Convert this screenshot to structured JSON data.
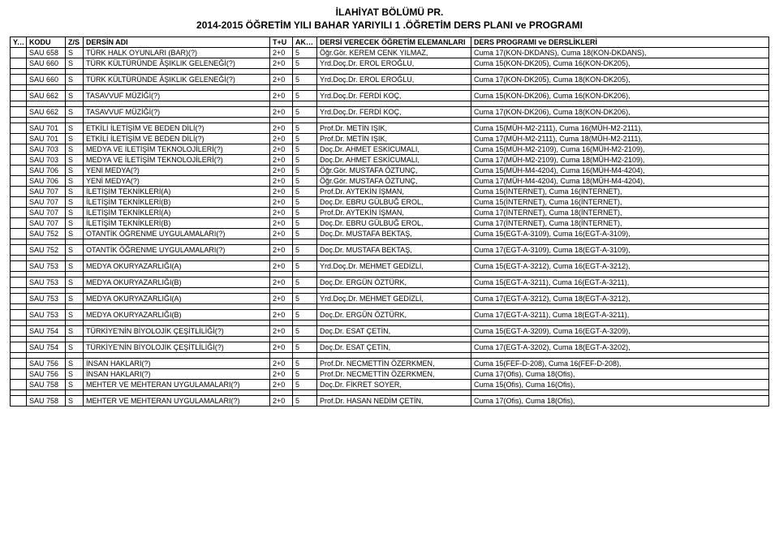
{
  "header": {
    "line1": "İLAHİYAT BÖLÜMÜ PR.",
    "line2": "2014-2015 ÖĞRETİM YILI BAHAR YARIYILI 1 .ÖĞRETİM DERS PLANI ve PROGRAMI"
  },
  "columns": {
    "yy": "Y.Y.",
    "kodu": "KODU",
    "zs": "Z/S",
    "ders": "DERSİN ADI",
    "tu": "T+U",
    "akts": "AKTS",
    "elem": "DERSİ VERECEK ÖĞRETİM ELEMANLARI",
    "prog": "DERS PROGRAMI ve DERSLİKLERİ"
  },
  "rows": [
    {
      "kodu": "SAU 658",
      "zs": "S",
      "ders": "TÜRK HALK OYUNLARI (BAR)(?)",
      "tu": "2+0",
      "akts": "5",
      "elem": "Öğr.Gör. KEREM CENK YILMAZ,",
      "prog": "Cuma 17(KON-DKDANS), Cuma 18(KON-DKDANS),"
    },
    {
      "kodu": "SAU 660",
      "zs": "S",
      "ders": "TÜRK KÜLTÜRÜNDE ÂŞIKLIK GELENEĞİ(?)",
      "tu": "2+0",
      "akts": "5",
      "elem": "Yrd.Doç.Dr. EROL EROĞLU,",
      "prog": "Cuma 15(KON-DK205), Cuma 16(KON-DK205),"
    },
    {
      "gap": true
    },
    {
      "kodu": "SAU 660",
      "zs": "S",
      "ders": "TÜRK KÜLTÜRÜNDE ÂŞIKLIK GELENEĞİ(?)",
      "tu": "2+0",
      "akts": "5",
      "elem": "Yrd.Doç.Dr. EROL EROĞLU,",
      "prog": "Cuma 17(KON-DK205), Cuma 18(KON-DK205),"
    },
    {
      "gap": true
    },
    {
      "kodu": "SAU 662",
      "zs": "S",
      "ders": "TASAVVUF MÜZİĞİ(?)",
      "tu": "2+0",
      "akts": "5",
      "elem": "Yrd.Doç.Dr. FERDİ KOÇ,",
      "prog": "Cuma 15(KON-DK206), Cuma 16(KON-DK206),"
    },
    {
      "gap": true
    },
    {
      "kodu": "SAU 662",
      "zs": "S",
      "ders": "TASAVVUF MÜZİĞİ(?)",
      "tu": "2+0",
      "akts": "5",
      "elem": "Yrd.Doç.Dr. FERDİ KOÇ,",
      "prog": "Cuma 17(KON-DK206), Cuma 18(KON-DK206),"
    },
    {
      "gap": true
    },
    {
      "kodu": "SAU 701",
      "zs": "S",
      "ders": "ETKİLİ İLETİŞİM VE BEDEN DİLİ(?)",
      "tu": "2+0",
      "akts": "5",
      "elem": "Prof.Dr. METİN IŞIK,",
      "prog": "Cuma 15(MÜH-M2-2111), Cuma 16(MÜH-M2-2111),"
    },
    {
      "kodu": "SAU 701",
      "zs": "S",
      "ders": "ETKİLİ İLETİŞİM VE BEDEN DİLİ(?)",
      "tu": "2+0",
      "akts": "5",
      "elem": "Prof.Dr. METİN IŞIK,",
      "prog": "Cuma 17(MÜH-M2-2111), Cuma 18(MÜH-M2-2111),"
    },
    {
      "kodu": "SAU 703",
      "zs": "S",
      "ders": "MEDYA VE İLETİŞİM TEKNOLOJİLERİ(?)",
      "tu": "2+0",
      "akts": "5",
      "elem": "Doç.Dr. AHMET ESKİCUMALI,",
      "prog": "Cuma 15(MÜH-M2-2109), Cuma 16(MÜH-M2-2109),"
    },
    {
      "kodu": "SAU 703",
      "zs": "S",
      "ders": "MEDYA VE İLETİŞİM TEKNOLOJİLERİ(?)",
      "tu": "2+0",
      "akts": "5",
      "elem": "Doç.Dr. AHMET ESKİCUMALI,",
      "prog": "Cuma 17(MÜH-M2-2109), Cuma 18(MÜH-M2-2109),"
    },
    {
      "kodu": "SAU 706",
      "zs": "S",
      "ders": "YENİ MEDYA(?)",
      "tu": "2+0",
      "akts": "5",
      "elem": "Öğr.Gör. MUSTAFA ÖZTUNÇ,",
      "prog": "Cuma 15(MÜH-M4-4204), Cuma 16(MÜH-M4-4204),"
    },
    {
      "kodu": "SAU 706",
      "zs": "S",
      "ders": "YENİ MEDYA(?)",
      "tu": "2+0",
      "akts": "5",
      "elem": "Öğr.Gör. MUSTAFA ÖZTUNÇ,",
      "prog": "Cuma 17(MÜH-M4-4204), Cuma 18(MÜH-M4-4204),"
    },
    {
      "kodu": "SAU 707",
      "zs": "S",
      "ders": "İLETİŞİM TEKNİKLERİ(A)",
      "tu": "2+0",
      "akts": "5",
      "elem": "Prof.Dr. AYTEKİN İŞMAN,",
      "prog": "Cuma 15(İNTERNET), Cuma 16(İNTERNET),"
    },
    {
      "kodu": "SAU 707",
      "zs": "S",
      "ders": "İLETİŞİM TEKNİKLERİ(B)",
      "tu": "2+0",
      "akts": "5",
      "elem": "Doç.Dr. EBRU GÜLBUĞ EROL,",
      "prog": "Cuma 15(İNTERNET), Cuma 16(İNTERNET),"
    },
    {
      "kodu": "SAU 707",
      "zs": "S",
      "ders": "İLETİŞİM TEKNİKLERİ(A)",
      "tu": "2+0",
      "akts": "5",
      "elem": "Prof.Dr. AYTEKİN İŞMAN,",
      "prog": "Cuma 17(İNTERNET), Cuma 18(İNTERNET),"
    },
    {
      "kodu": "SAU 707",
      "zs": "S",
      "ders": "İLETİŞİM TEKNİKLERİ(B)",
      "tu": "2+0",
      "akts": "5",
      "elem": "Doç.Dr. EBRU GÜLBUĞ EROL,",
      "prog": "Cuma 17(İNTERNET), Cuma 18(İNTERNET),"
    },
    {
      "kodu": "SAU 752",
      "zs": "S",
      "ders": "OTANTİK ÖĞRENME UYGULAMALARI(?)",
      "tu": "2+0",
      "akts": "5",
      "elem": "Doç.Dr. MUSTAFA BEKTAŞ,",
      "prog": "Cuma 15(EGT-A-3109), Cuma 16(EGT-A-3109),"
    },
    {
      "gap": true
    },
    {
      "kodu": "SAU 752",
      "zs": "S",
      "ders": "OTANTİK ÖĞRENME UYGULAMALARI(?)",
      "tu": "2+0",
      "akts": "5",
      "elem": "Doç.Dr. MUSTAFA BEKTAŞ,",
      "prog": "Cuma 17(EGT-A-3109), Cuma 18(EGT-A-3109),"
    },
    {
      "gap": true
    },
    {
      "kodu": "SAU 753",
      "zs": "S",
      "ders": "MEDYA OKURYAZARLIĞI(A)",
      "tu": "2+0",
      "akts": "5",
      "elem": "Yrd.Doç.Dr. MEHMET GEDİZLİ,",
      "prog": "Cuma 15(EGT-A-3212), Cuma 16(EGT-A-3212),"
    },
    {
      "gap": true
    },
    {
      "kodu": "SAU 753",
      "zs": "S",
      "ders": "MEDYA OKURYAZARLIĞI(B)",
      "tu": "2+0",
      "akts": "5",
      "elem": "Doç.Dr. ERGÜN ÖZTÜRK,",
      "prog": "Cuma 15(EGT-A-3211), Cuma 16(EGT-A-3211),"
    },
    {
      "gap": true
    },
    {
      "kodu": "SAU 753",
      "zs": "S",
      "ders": "MEDYA OKURYAZARLIĞI(A)",
      "tu": "2+0",
      "akts": "5",
      "elem": "Yrd.Doç.Dr. MEHMET GEDİZLİ,",
      "prog": "Cuma 17(EGT-A-3212), Cuma 18(EGT-A-3212),"
    },
    {
      "gap": true
    },
    {
      "kodu": "SAU 753",
      "zs": "S",
      "ders": "MEDYA OKURYAZARLIĞI(B)",
      "tu": "2+0",
      "akts": "5",
      "elem": "Doç.Dr. ERGÜN ÖZTÜRK,",
      "prog": "Cuma 17(EGT-A-3211), Cuma 18(EGT-A-3211),"
    },
    {
      "gap": true
    },
    {
      "kodu": "SAU 754",
      "zs": "S",
      "ders": "TÜRKİYE'NİN BİYOLOJİK ÇEŞİTLİLİĞİ(?)",
      "tu": "2+0",
      "akts": "5",
      "elem": "Doç.Dr. ESAT ÇETİN,",
      "prog": "Cuma 15(EGT-A-3209), Cuma 16(EGT-A-3209),"
    },
    {
      "gap": true
    },
    {
      "kodu": "SAU 754",
      "zs": "S",
      "ders": "TÜRKİYE'NİN BİYOLOJİK ÇEŞİTLİLİĞİ(?)",
      "tu": "2+0",
      "akts": "5",
      "elem": "Doç.Dr. ESAT ÇETİN,",
      "prog": "Cuma 17(EGT-A-3202), Cuma 18(EGT-A-3202),"
    },
    {
      "gap": true
    },
    {
      "kodu": "SAU 756",
      "zs": "S",
      "ders": "İNSAN HAKLARI(?)",
      "tu": "2+0",
      "akts": "5",
      "elem": "Prof.Dr. NECMETTİN ÖZERKMEN,",
      "prog": "Cuma 15(FEF-D-208), Cuma 16(FEF-D-208),"
    },
    {
      "kodu": "SAU 756",
      "zs": "S",
      "ders": "İNSAN HAKLARI(?)",
      "tu": "2+0",
      "akts": "5",
      "elem": "Prof.Dr. NECMETTİN ÖZERKMEN,",
      "prog": "Cuma 17(Ofis), Cuma 18(Ofis),"
    },
    {
      "kodu": "SAU 758",
      "zs": "S",
      "ders": "MEHTER VE MEHTERAN UYGULAMALARI(?)",
      "tu": "2+0",
      "akts": "5",
      "elem": "Doç.Dr. FİKRET SOYER,",
      "prog": "Cuma 15(Ofis), Cuma 16(Ofis),"
    },
    {
      "gap": true
    },
    {
      "kodu": "SAU 758",
      "zs": "S",
      "ders": "MEHTER VE MEHTERAN UYGULAMALARI(?)",
      "tu": "2+0",
      "akts": "5",
      "elem": "Prof.Dr. HASAN NEDİM ÇETİN,",
      "prog": "Cuma 17(Ofis), Cuma 18(Ofis),"
    }
  ]
}
